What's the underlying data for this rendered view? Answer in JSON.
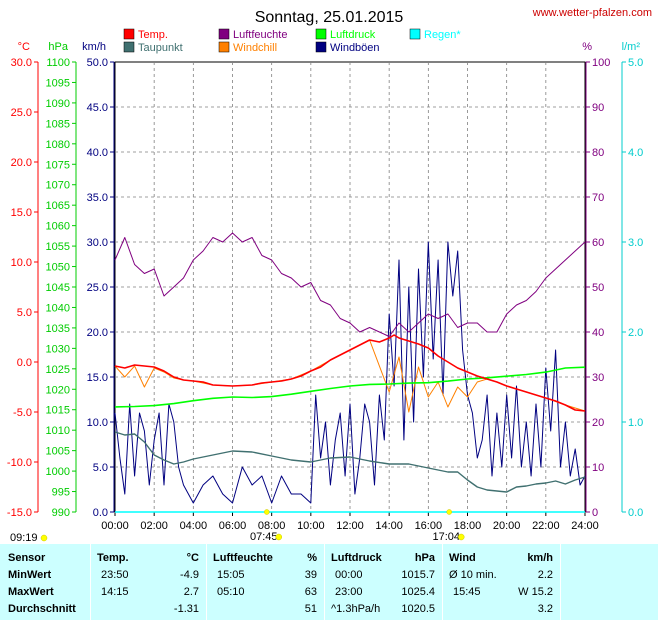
{
  "title": "Sonntag, 25.01.2015",
  "site_link": "www.wetter-pfalzen.com",
  "legend": [
    {
      "label": "Temp.",
      "color": "#ff0000"
    },
    {
      "label": "Taupunkt",
      "color": "#407070"
    },
    {
      "label": "Luftfeuchte",
      "color": "#800080"
    },
    {
      "label": "Windchill",
      "color": "#ff8000"
    },
    {
      "label": "Luftdruck",
      "color": "#00ff00"
    },
    {
      "label": "Windböen",
      "color": "#000080"
    },
    {
      "label": "Regen*",
      "color": "#00ffff"
    }
  ],
  "axis_units": {
    "temp": "°C",
    "pressure": "hPa",
    "wind": "km/h",
    "humidity": "%",
    "rain": "l/m²"
  },
  "axis_ticks": {
    "temp": [
      "30.0",
      "25.0",
      "20.0",
      "15.0",
      "10.0",
      "5.0",
      "0.0",
      "-5.0",
      "-10.0",
      "-15.0"
    ],
    "pressure": [
      "1100",
      "1095",
      "1090",
      "1085",
      "1080",
      "1075",
      "1070",
      "1065",
      "1060",
      "1055",
      "1050",
      "1045",
      "1040",
      "1035",
      "1030",
      "1025",
      "1020",
      "1015",
      "1010",
      "1005",
      "1000",
      "995",
      "990"
    ],
    "wind": [
      "50.0",
      "45.0",
      "40.0",
      "35.0",
      "30.0",
      "25.0",
      "20.0",
      "15.0",
      "10.0",
      "5.0",
      "0.0"
    ],
    "humidity": [
      "100",
      "90",
      "80",
      "70",
      "60",
      "50",
      "40",
      "30",
      "20",
      "10",
      "0"
    ],
    "rain": [
      "5.0",
      "4.0",
      "3.0",
      "2.0",
      "1.0",
      "0.0"
    ],
    "time": [
      "00:00",
      "02:00",
      "04:00",
      "06:00",
      "08:00",
      "10:00",
      "12:00",
      "14:00",
      "16:00",
      "18:00",
      "20:00",
      "22:00",
      "24:00"
    ]
  },
  "sun_markers": {
    "sunrise": "07:45",
    "sunset": "17:04",
    "update_time": "09:19"
  },
  "colors": {
    "temp": "#ff0000",
    "dewpoint": "#407070",
    "humidity": "#800080",
    "windchill": "#ff8000",
    "pressure": "#00ff00",
    "gusts": "#000080",
    "rain": "#00ffff",
    "stats_bg": "#ccffff",
    "temp_axis": "#ff0000",
    "pressure_axis": "#00cc00"
  },
  "chart_data": {
    "type": "line",
    "x_unit": "hour",
    "xlim": [
      0,
      24
    ],
    "axes": {
      "temp": {
        "range": [
          -15,
          30
        ]
      },
      "pressure": {
        "range": [
          990,
          1100
        ]
      },
      "wind": {
        "range": [
          0,
          50
        ]
      },
      "humidity": {
        "range": [
          0,
          100
        ]
      },
      "rain": {
        "range": [
          0,
          5
        ]
      }
    },
    "series": [
      {
        "name": "Temp.",
        "axis": "temp",
        "color": "#ff0000",
        "x": [
          0,
          0.5,
          1,
          1.5,
          2,
          2.5,
          3,
          3.5,
          4,
          4.5,
          5,
          6,
          7,
          7.5,
          8,
          8.5,
          9,
          9.5,
          10,
          10.5,
          11,
          11.5,
          12,
          12.5,
          13,
          13.5,
          14,
          14.25,
          14.5,
          15,
          15.5,
          16,
          16.5,
          17,
          17.5,
          18,
          18.5,
          19,
          19.5,
          20,
          20.5,
          21,
          21.5,
          22,
          22.5,
          23,
          23.5,
          24
        ],
        "y": [
          -0.4,
          -0.6,
          -0.3,
          -0.4,
          -0.5,
          -0.9,
          -1.5,
          -1.8,
          -1.9,
          -2.0,
          -2.3,
          -2.4,
          -2.3,
          -2.1,
          -2.0,
          -1.9,
          -1.7,
          -1.4,
          -0.9,
          -0.5,
          0.2,
          0.7,
          1.2,
          1.7,
          2.2,
          2.0,
          2.4,
          2.7,
          2.4,
          2.1,
          1.8,
          1.4,
          0.6,
          0.0,
          -0.6,
          -1.0,
          -1.4,
          -1.7,
          -2.0,
          -2.4,
          -2.7,
          -3.0,
          -3.3,
          -3.6,
          -3.9,
          -4.3,
          -4.8,
          -4.9
        ]
      },
      {
        "name": "Taupunkt",
        "axis": "temp",
        "color": "#407070",
        "x": [
          0,
          0.5,
          1,
          1.5,
          2,
          2.5,
          3,
          3.5,
          4,
          5,
          6,
          7,
          8,
          9,
          10,
          11,
          12,
          13,
          14,
          15,
          16,
          16.5,
          17,
          17.5,
          18,
          18.5,
          19,
          19.5,
          20,
          20.5,
          21,
          21.5,
          22,
          22.5,
          23,
          23.5,
          24
        ],
        "y": [
          -7.0,
          -7.3,
          -7.2,
          -8.0,
          -9.3,
          -9.8,
          -10.2,
          -10.0,
          -9.7,
          -9.3,
          -8.9,
          -9.0,
          -9.4,
          -9.8,
          -10.0,
          -9.6,
          -9.5,
          -9.9,
          -10.2,
          -10.2,
          -10.6,
          -10.8,
          -11.0,
          -11.0,
          -11.8,
          -12.5,
          -12.8,
          -12.9,
          -13.0,
          -12.5,
          -12.4,
          -12.2,
          -12.1,
          -11.9,
          -12.2,
          -11.8,
          -11.5
        ]
      },
      {
        "name": "Luftfeuchte",
        "axis": "humidity",
        "color": "#800080",
        "x": [
          0,
          0.5,
          1,
          1.5,
          2,
          2.5,
          3,
          3.5,
          4,
          4.5,
          5,
          5.5,
          6,
          6.5,
          7,
          7.5,
          8,
          8.5,
          9,
          9.5,
          10,
          10.5,
          11,
          11.5,
          12,
          12.5,
          13,
          13.5,
          14,
          14.5,
          15,
          15.5,
          16,
          16.5,
          17,
          17.5,
          18,
          18.5,
          19,
          19.5,
          20,
          20.5,
          21,
          21.5,
          22,
          22.5,
          23,
          23.5,
          24
        ],
        "y": [
          56,
          61,
          55,
          53,
          54,
          48,
          50,
          52,
          56,
          58,
          61,
          60,
          62,
          60,
          61,
          57,
          56,
          53,
          52,
          50,
          51,
          47,
          46,
          43,
          42,
          40,
          41,
          40,
          39,
          42,
          40,
          42,
          44,
          43,
          44,
          41,
          42,
          42,
          40,
          40,
          44,
          46,
          47,
          49,
          52,
          54,
          56,
          58,
          60
        ]
      },
      {
        "name": "Windchill",
        "axis": "temp",
        "color": "#ff8000",
        "x": [
          0,
          0.5,
          1,
          1.5,
          2,
          2.5,
          3,
          3.5,
          4,
          5,
          6,
          7,
          8,
          9,
          10,
          11,
          12,
          13,
          14,
          14.5,
          15,
          15.5,
          16,
          16.5,
          17,
          17.5,
          18,
          18.5,
          19,
          19.5,
          20,
          21,
          22,
          23,
          24
        ],
        "y": [
          -0.4,
          -1.5,
          -0.4,
          -2.5,
          -0.6,
          -1.0,
          -1.6,
          -1.8,
          -1.9,
          -2.3,
          -2.4,
          -2.3,
          -2.0,
          -1.7,
          -0.9,
          0.2,
          1.2,
          2.2,
          -3.0,
          0.5,
          -5.0,
          -0.5,
          -3.5,
          -2.0,
          -4.5,
          -2.5,
          -3.5,
          -2.0,
          -1.7,
          -2.0,
          -2.4,
          -3.0,
          -3.6,
          -4.3,
          -4.9
        ]
      },
      {
        "name": "Luftdruck",
        "axis": "pressure",
        "color": "#00ff00",
        "x": [
          0,
          1,
          2,
          3,
          4,
          5,
          6,
          7,
          8,
          9,
          10,
          11,
          12,
          13,
          14,
          15,
          16,
          17,
          18,
          19,
          20,
          21,
          22,
          23,
          24
        ],
        "y": [
          1015.7,
          1015.8,
          1016.0,
          1016.5,
          1017.2,
          1017.8,
          1018.1,
          1018.0,
          1018.2,
          1018.8,
          1019.5,
          1020.2,
          1020.8,
          1021.2,
          1021.3,
          1021.5,
          1021.6,
          1022.0,
          1022.5,
          1022.8,
          1023.2,
          1023.6,
          1024.2,
          1025.2,
          1025.4
        ]
      },
      {
        "name": "Windböen",
        "axis": "wind",
        "color": "#000080",
        "x": [
          0,
          0.25,
          0.5,
          0.75,
          1,
          1.25,
          1.5,
          1.75,
          2,
          2.25,
          2.5,
          2.75,
          3,
          3.25,
          3.5,
          3.75,
          4,
          4.5,
          5,
          5.5,
          6,
          6.5,
          7,
          7.5,
          8,
          8.5,
          9,
          9.5,
          10,
          10.25,
          10.5,
          10.75,
          11,
          11.25,
          11.5,
          11.75,
          12,
          12.25,
          12.5,
          12.75,
          13,
          13.25,
          13.5,
          13.75,
          14,
          14.25,
          14.5,
          14.75,
          15,
          15.25,
          15.5,
          15.75,
          16,
          16.25,
          16.5,
          16.75,
          17,
          17.25,
          17.5,
          17.75,
          18,
          18.25,
          18.5,
          18.75,
          19,
          19.25,
          19.5,
          19.75,
          20,
          20.25,
          20.5,
          20.75,
          21,
          21.25,
          21.5,
          21.75,
          22,
          22.25,
          22.5,
          22.75,
          23,
          23.25,
          23.5,
          23.75,
          24
        ],
        "y": [
          11,
          6,
          2,
          12,
          4,
          11,
          9,
          3,
          8,
          11,
          3,
          12,
          10,
          5,
          3,
          2,
          1,
          3,
          4,
          2,
          1,
          5,
          3,
          4,
          1,
          4,
          2,
          2,
          1,
          13,
          6,
          10,
          3,
          8,
          11,
          4,
          12,
          2,
          6,
          12,
          10,
          3,
          13,
          8,
          22,
          14,
          28,
          8,
          25,
          10,
          27,
          15,
          30,
          17,
          28,
          13,
          30,
          24,
          29,
          18,
          13,
          11,
          6,
          8,
          13,
          4,
          11,
          5,
          13,
          6,
          14,
          5,
          10,
          4,
          12,
          5,
          16,
          9,
          18,
          5,
          10,
          4,
          7,
          3,
          4
        ]
      },
      {
        "name": "Regen*",
        "axis": "rain",
        "color": "#00ffff",
        "x": [
          0,
          24
        ],
        "y": [
          0,
          0
        ]
      }
    ]
  },
  "stats": {
    "headers": {
      "sensor": "Sensor",
      "temp": "Temp.",
      "temp_unit": "°C",
      "humidity": "Luftfeuchte",
      "humidity_unit": "%",
      "pressure": "Luftdruck",
      "pressure_unit": "hPa",
      "wind": "Wind",
      "wind_unit": "km/h"
    },
    "rows": [
      {
        "label": "MinWert",
        "temp_time": "23:50",
        "temp_val": "-4.9",
        "hum_time": "15:05",
        "hum_val": "39",
        "press_time": "00:00",
        "press_val": "1015.7",
        "wind_label": "Ø 10 min.",
        "wind_val": "2.2"
      },
      {
        "label": "MaxWert",
        "temp_time": "14:15",
        "temp_val": "2.7",
        "hum_time": "05:10",
        "hum_val": "63",
        "press_time": "23:00",
        "press_val": "1025.4",
        "wind_label": "15:45",
        "wind_val": "W 15.2"
      },
      {
        "label": "Durchschnitt",
        "temp_time": "",
        "temp_val": "-1.31",
        "hum_time": "",
        "hum_val": "51",
        "press_time": "^1.3hPa/h",
        "press_val": "1020.5",
        "wind_label": "",
        "wind_val": "3.2"
      }
    ]
  }
}
